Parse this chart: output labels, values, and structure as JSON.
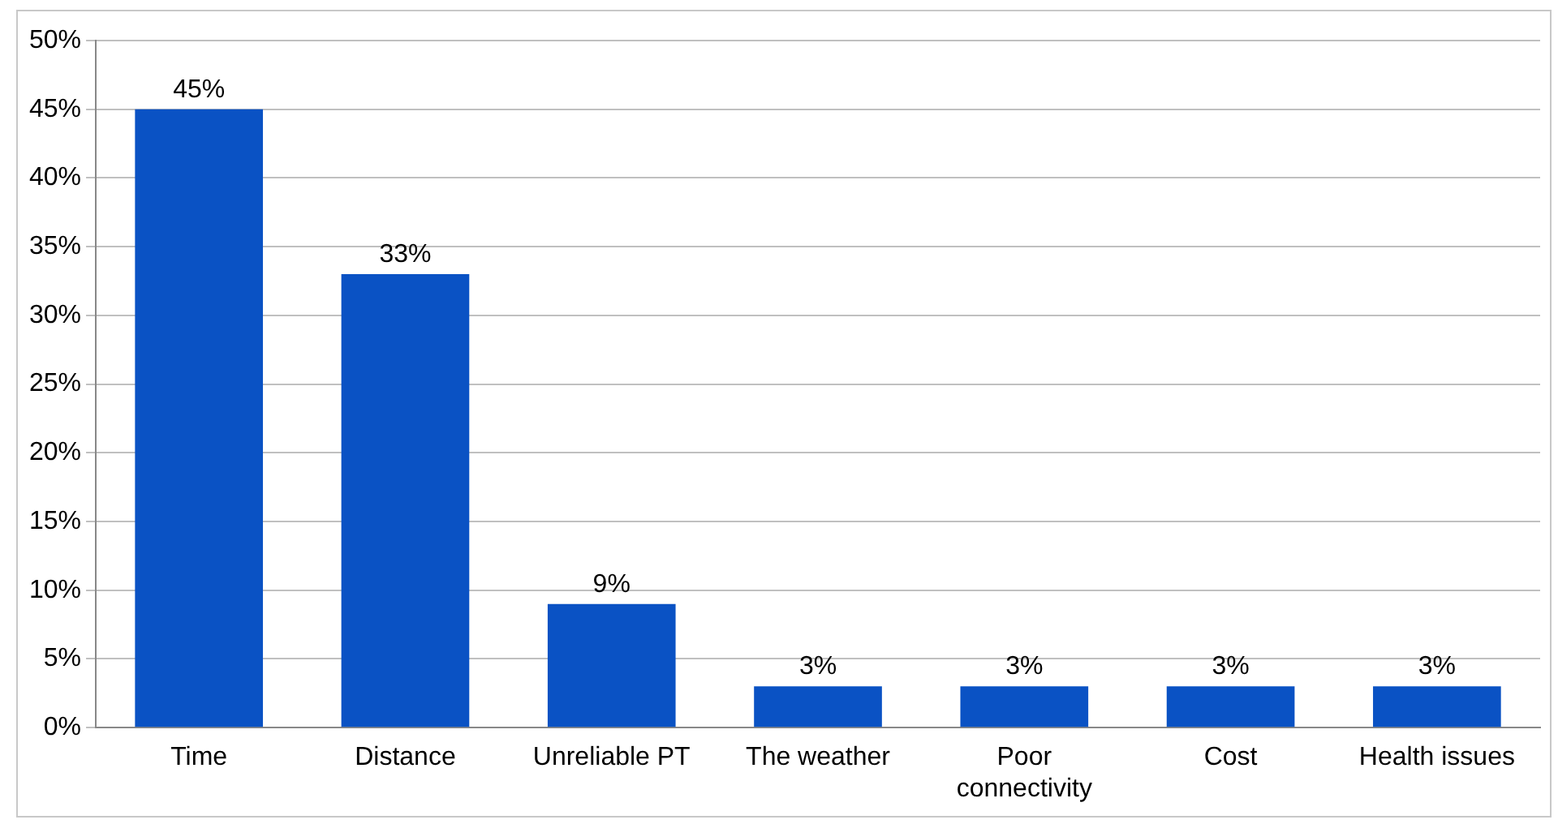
{
  "chart_data": {
    "type": "bar",
    "categories": [
      "Time",
      "Distance",
      "Unreliable PT",
      "The weather",
      "Poor connectivity",
      "Cost",
      "Health issues"
    ],
    "values": [
      45,
      33,
      9,
      3,
      3,
      3,
      3
    ],
    "value_labels": [
      "45%",
      "33%",
      "9%",
      "3%",
      "3%",
      "3%",
      "3%"
    ],
    "color": "#0a52c4",
    "ylim": [
      0,
      50
    ],
    "yticks": [
      {
        "value": 0,
        "label": "0%"
      },
      {
        "value": 5,
        "label": "5%"
      },
      {
        "value": 10,
        "label": "10%"
      },
      {
        "value": 15,
        "label": "15%"
      },
      {
        "value": 20,
        "label": "20%"
      },
      {
        "value": 25,
        "label": "25%"
      },
      {
        "value": 30,
        "label": "30%"
      },
      {
        "value": 35,
        "label": "35%"
      },
      {
        "value": 40,
        "label": "40%"
      },
      {
        "value": 45,
        "label": "45%"
      },
      {
        "value": 50,
        "label": "50%"
      }
    ],
    "grid": "y",
    "legend": false
  }
}
